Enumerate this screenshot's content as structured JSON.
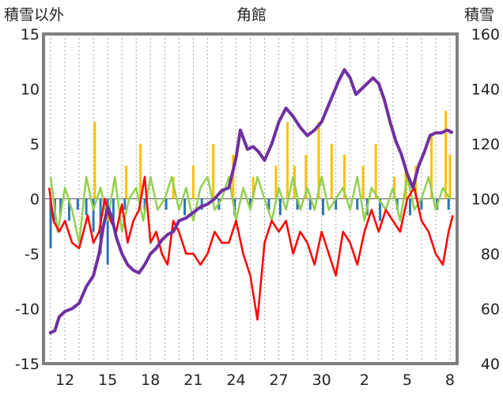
{
  "chart_data": {
    "type": "line",
    "title": "角館",
    "ylabel_left": "積雪以外",
    "ylabel_right": "積雪",
    "x_ticks": [
      "12",
      "15",
      "18",
      "21",
      "24",
      "27",
      "30",
      "2",
      "5",
      "8"
    ],
    "y_left": {
      "min": -15,
      "max": 15,
      "ticks": [
        -15,
        -10,
        -5,
        0,
        5,
        10,
        15
      ]
    },
    "y_right": {
      "min": 40,
      "max": 160,
      "ticks": [
        40,
        60,
        80,
        100,
        120,
        140,
        160
      ]
    },
    "grid": "vertical dotted",
    "colors": {
      "snow_depth": "#7030a0",
      "temperature": "#ff0000",
      "temp_change": "#92d050",
      "precipitation": "#ffc000",
      "snow_change": "#2e75b6"
    },
    "series": [
      {
        "key": "snow_depth",
        "axis": "right",
        "x": [
          10.9,
          11.3,
          11.6,
          12.0,
          12.5,
          13.0,
          13.5,
          14.0,
          14.4,
          14.7,
          15.0,
          15.3,
          15.6,
          16.0,
          16.4,
          16.8,
          17.2,
          17.6,
          18.0,
          18.4,
          18.8,
          19.2,
          19.6,
          20.0,
          20.5,
          21.0,
          21.5,
          22.0,
          22.5,
          23.0,
          23.5,
          24.0,
          24.3,
          24.8,
          25.2,
          25.6,
          26.0,
          26.5,
          27.0,
          27.5,
          28.0,
          28.5,
          29.0,
          29.5,
          30.0,
          30.4,
          30.8,
          31.2,
          31.6,
          32.0,
          32.4,
          32.8,
          33.2,
          33.6,
          34.0,
          34.4,
          34.8,
          35.2,
          35.6,
          36.0,
          36.4,
          36.8,
          37.2,
          37.6,
          38.0,
          38.4,
          38.8,
          39.2
        ],
        "y": [
          51,
          52,
          57,
          59,
          60,
          62,
          68,
          72,
          80,
          90,
          97,
          93,
          86,
          80,
          76,
          74,
          73,
          76,
          80,
          82,
          85,
          87,
          88,
          92,
          93,
          95,
          97,
          98,
          100,
          103,
          104,
          115,
          125,
          118,
          119,
          117,
          114,
          120,
          128,
          133,
          130,
          126,
          123,
          125,
          128,
          133,
          138,
          143,
          147,
          144,
          138,
          140,
          142,
          144,
          142,
          136,
          128,
          121,
          116,
          109,
          104,
          112,
          117,
          123,
          124,
          124,
          125,
          124
        ]
      },
      {
        "key": "temperature",
        "axis": "left",
        "x": [
          10.9,
          11.2,
          11.6,
          12.0,
          12.5,
          13.0,
          13.3,
          13.6,
          14.0,
          14.4,
          14.8,
          15.2,
          15.6,
          16.0,
          16.4,
          16.8,
          17.2,
          17.6,
          18.0,
          18.4,
          18.8,
          19.2,
          19.6,
          20.0,
          20.5,
          21.0,
          21.5,
          22.0,
          22.5,
          23.0,
          23.5,
          24.0,
          24.5,
          25.0,
          25.5,
          26.0,
          26.5,
          27.0,
          27.5,
          28.0,
          28.5,
          29.0,
          29.5,
          30.0,
          30.5,
          31.0,
          31.5,
          32.0,
          32.5,
          33.0,
          33.5,
          34.0,
          34.5,
          35.0,
          35.5,
          36.0,
          36.5,
          37.0,
          37.5,
          38.0,
          38.5,
          38.9,
          39.2
        ],
        "y": [
          1,
          -2,
          -3,
          -2,
          -4,
          -4.5,
          -3,
          -1.5,
          -4,
          -3,
          0,
          -2,
          -3,
          -0.5,
          -4,
          -2,
          -1,
          2,
          -4,
          -3,
          -5,
          -6,
          -2,
          -3,
          -5,
          -5,
          -6,
          -5,
          -3,
          -4,
          -4,
          -2,
          -5,
          -7,
          -11,
          -4,
          -2,
          -3,
          -2,
          -5,
          -3,
          -4,
          -6,
          -3,
          -5,
          -7,
          -3,
          -4,
          -6,
          -3,
          -1,
          -3,
          -1,
          -2,
          -3,
          0,
          1,
          -2,
          -3,
          -5,
          -6,
          -3,
          -1.5
        ]
      },
      {
        "key": "temp_change",
        "axis": "left",
        "x": [
          11.0,
          11.5,
          12.0,
          12.5,
          13.0,
          13.5,
          14.0,
          14.5,
          15.0,
          15.5,
          16.0,
          16.5,
          17.0,
          17.5,
          18.0,
          18.5,
          19.0,
          19.5,
          20.0,
          20.5,
          21.0,
          21.5,
          22.0,
          22.5,
          23.0,
          23.5,
          24.0,
          24.5,
          25.0,
          25.5,
          26.0,
          26.5,
          27.0,
          27.5,
          28.0,
          28.5,
          29.0,
          29.5,
          30.0,
          30.5,
          31.0,
          31.5,
          32.0,
          32.5,
          33.0,
          33.5,
          34.0,
          34.5,
          35.0,
          35.5,
          36.0,
          36.5,
          37.0,
          37.5,
          38.0,
          38.5,
          39.0
        ],
        "y": [
          2,
          -3,
          1,
          -1,
          -4,
          2,
          -1,
          1,
          -2,
          2,
          -3,
          0,
          1,
          -2,
          2,
          -1,
          0,
          2,
          -1,
          1,
          -2,
          1,
          2,
          -1,
          0,
          2,
          -2,
          1,
          -1,
          2,
          0,
          -2,
          1,
          -1,
          2,
          -1,
          1,
          -1,
          2,
          -1,
          0,
          1,
          -1,
          2,
          -2,
          1,
          0,
          -1,
          1,
          -2,
          2,
          -1,
          0,
          2,
          -1,
          1,
          0
        ]
      }
    ],
    "bars": [
      {
        "key": "precipitation",
        "axis": "left",
        "direction": "up",
        "x": [
          14.1,
          16.3,
          17.3,
          19.6,
          21.0,
          22.4,
          23.8,
          25.2,
          26.8,
          27.6,
          28.1,
          28.9,
          29.8,
          30.7,
          31.6,
          32.9,
          33.8,
          35.1,
          35.9,
          36.6,
          37.7,
          38.7,
          39.0
        ],
        "y": [
          7,
          3,
          5,
          2,
          3,
          5,
          4,
          2,
          3,
          7,
          3,
          4,
          7,
          5,
          4,
          3,
          5,
          2,
          3,
          3,
          6,
          8,
          4
        ]
      },
      {
        "key": "snow_change",
        "axis": "left",
        "direction": "down",
        "x": [
          11.0,
          11.3,
          11.7,
          12.3,
          12.9,
          13.5,
          14.0,
          14.5,
          15.0,
          15.4,
          16.2,
          17.6,
          19.1,
          20.4,
          21.6,
          22.8,
          23.9,
          25.0,
          26.3,
          27.1,
          28.3,
          29.2,
          30.1,
          31.0,
          32.5,
          33.2,
          34.1,
          35.3,
          36.2,
          37.0,
          38.1,
          38.9
        ],
        "y": [
          -4.5,
          -2,
          -1.5,
          -2,
          -1,
          -1.5,
          -3,
          -5,
          -6,
          -2,
          -1,
          -1,
          -1,
          -1.5,
          -1,
          -1,
          -1.5,
          -1,
          -1,
          -1.5,
          -1,
          -1,
          -1.5,
          -1,
          -1,
          -1.5,
          -2,
          -1,
          -1.5,
          -1,
          -1,
          -1
        ]
      }
    ]
  }
}
